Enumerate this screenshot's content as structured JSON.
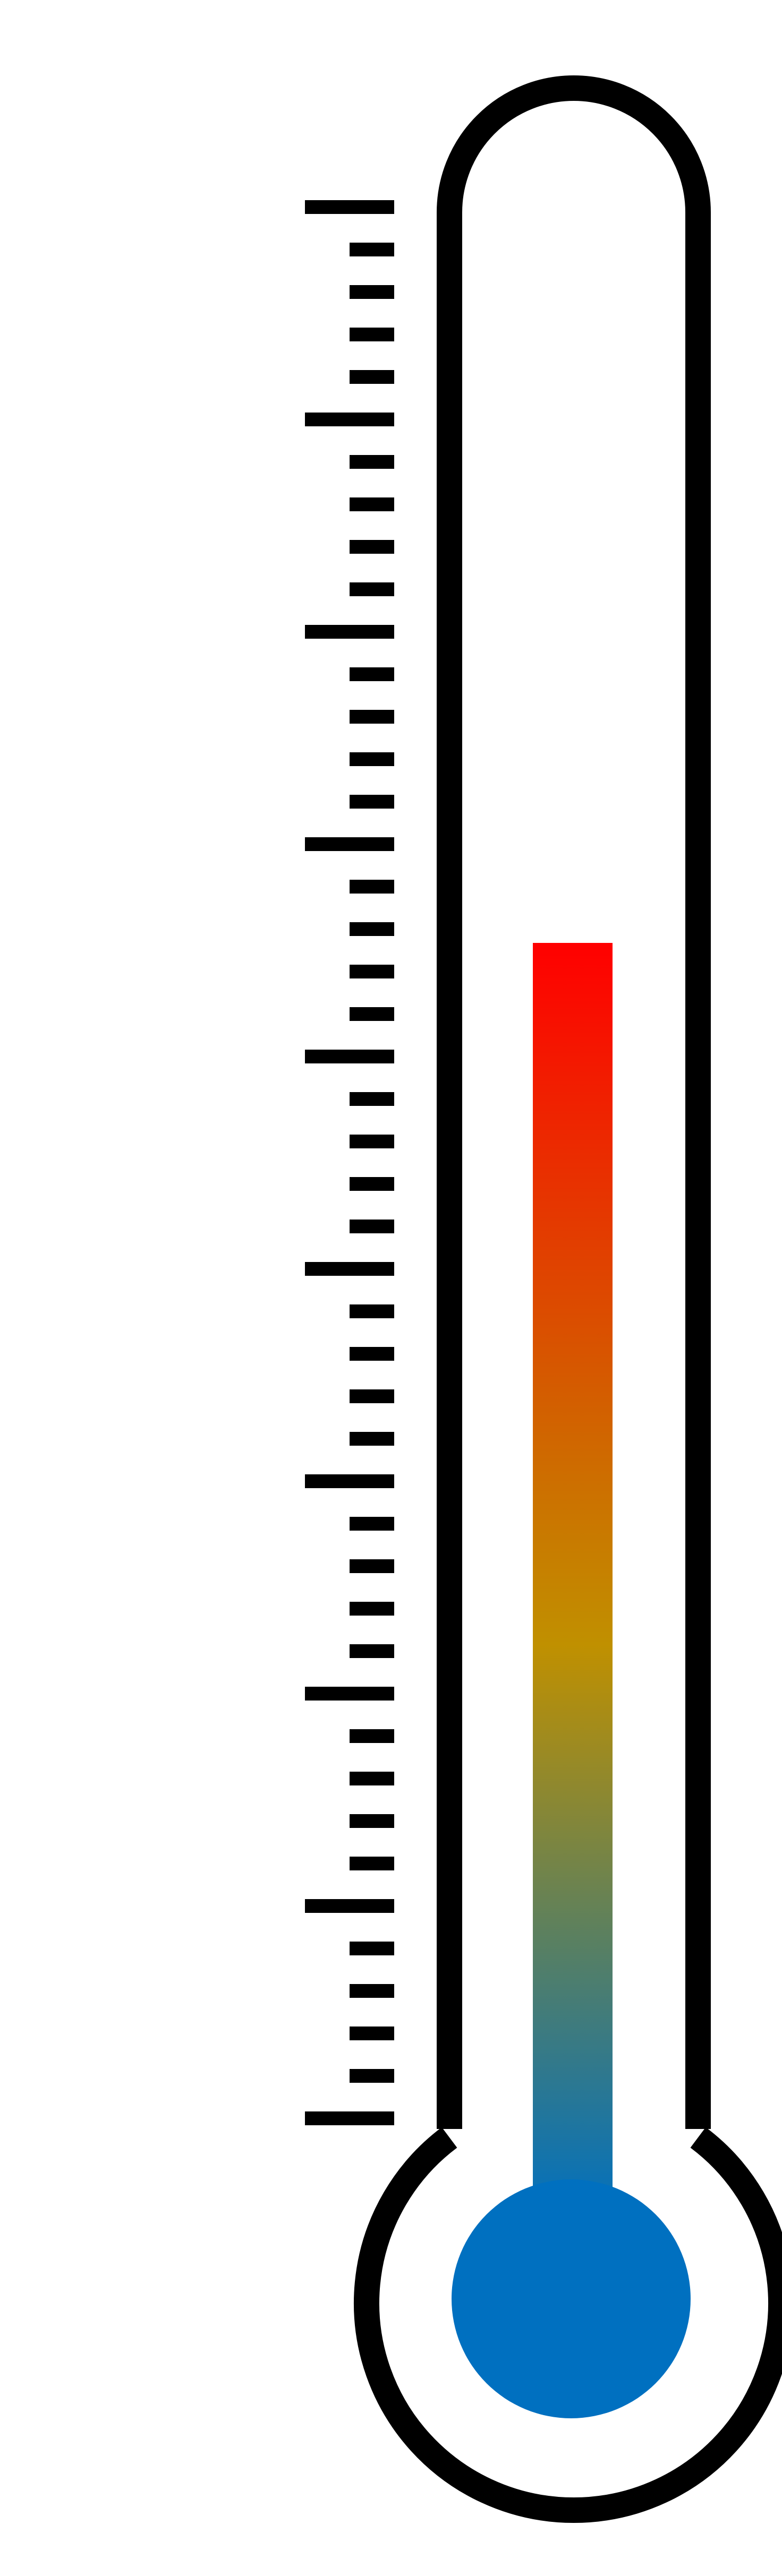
{
  "thermometer": {
    "fill_level": 0.615,
    "tick_count": 46,
    "major_tick_every": 5,
    "colors": {
      "outline": "#000000",
      "background": "#ffffff",
      "fluid_top": "#ff0000",
      "fluid_upper": "#d45c00",
      "fluid_mid": "#c09000",
      "fluid_lower": "#5a8060",
      "fluid_bottom": "#0070c0",
      "bulb_fluid": "#0070c0"
    }
  }
}
